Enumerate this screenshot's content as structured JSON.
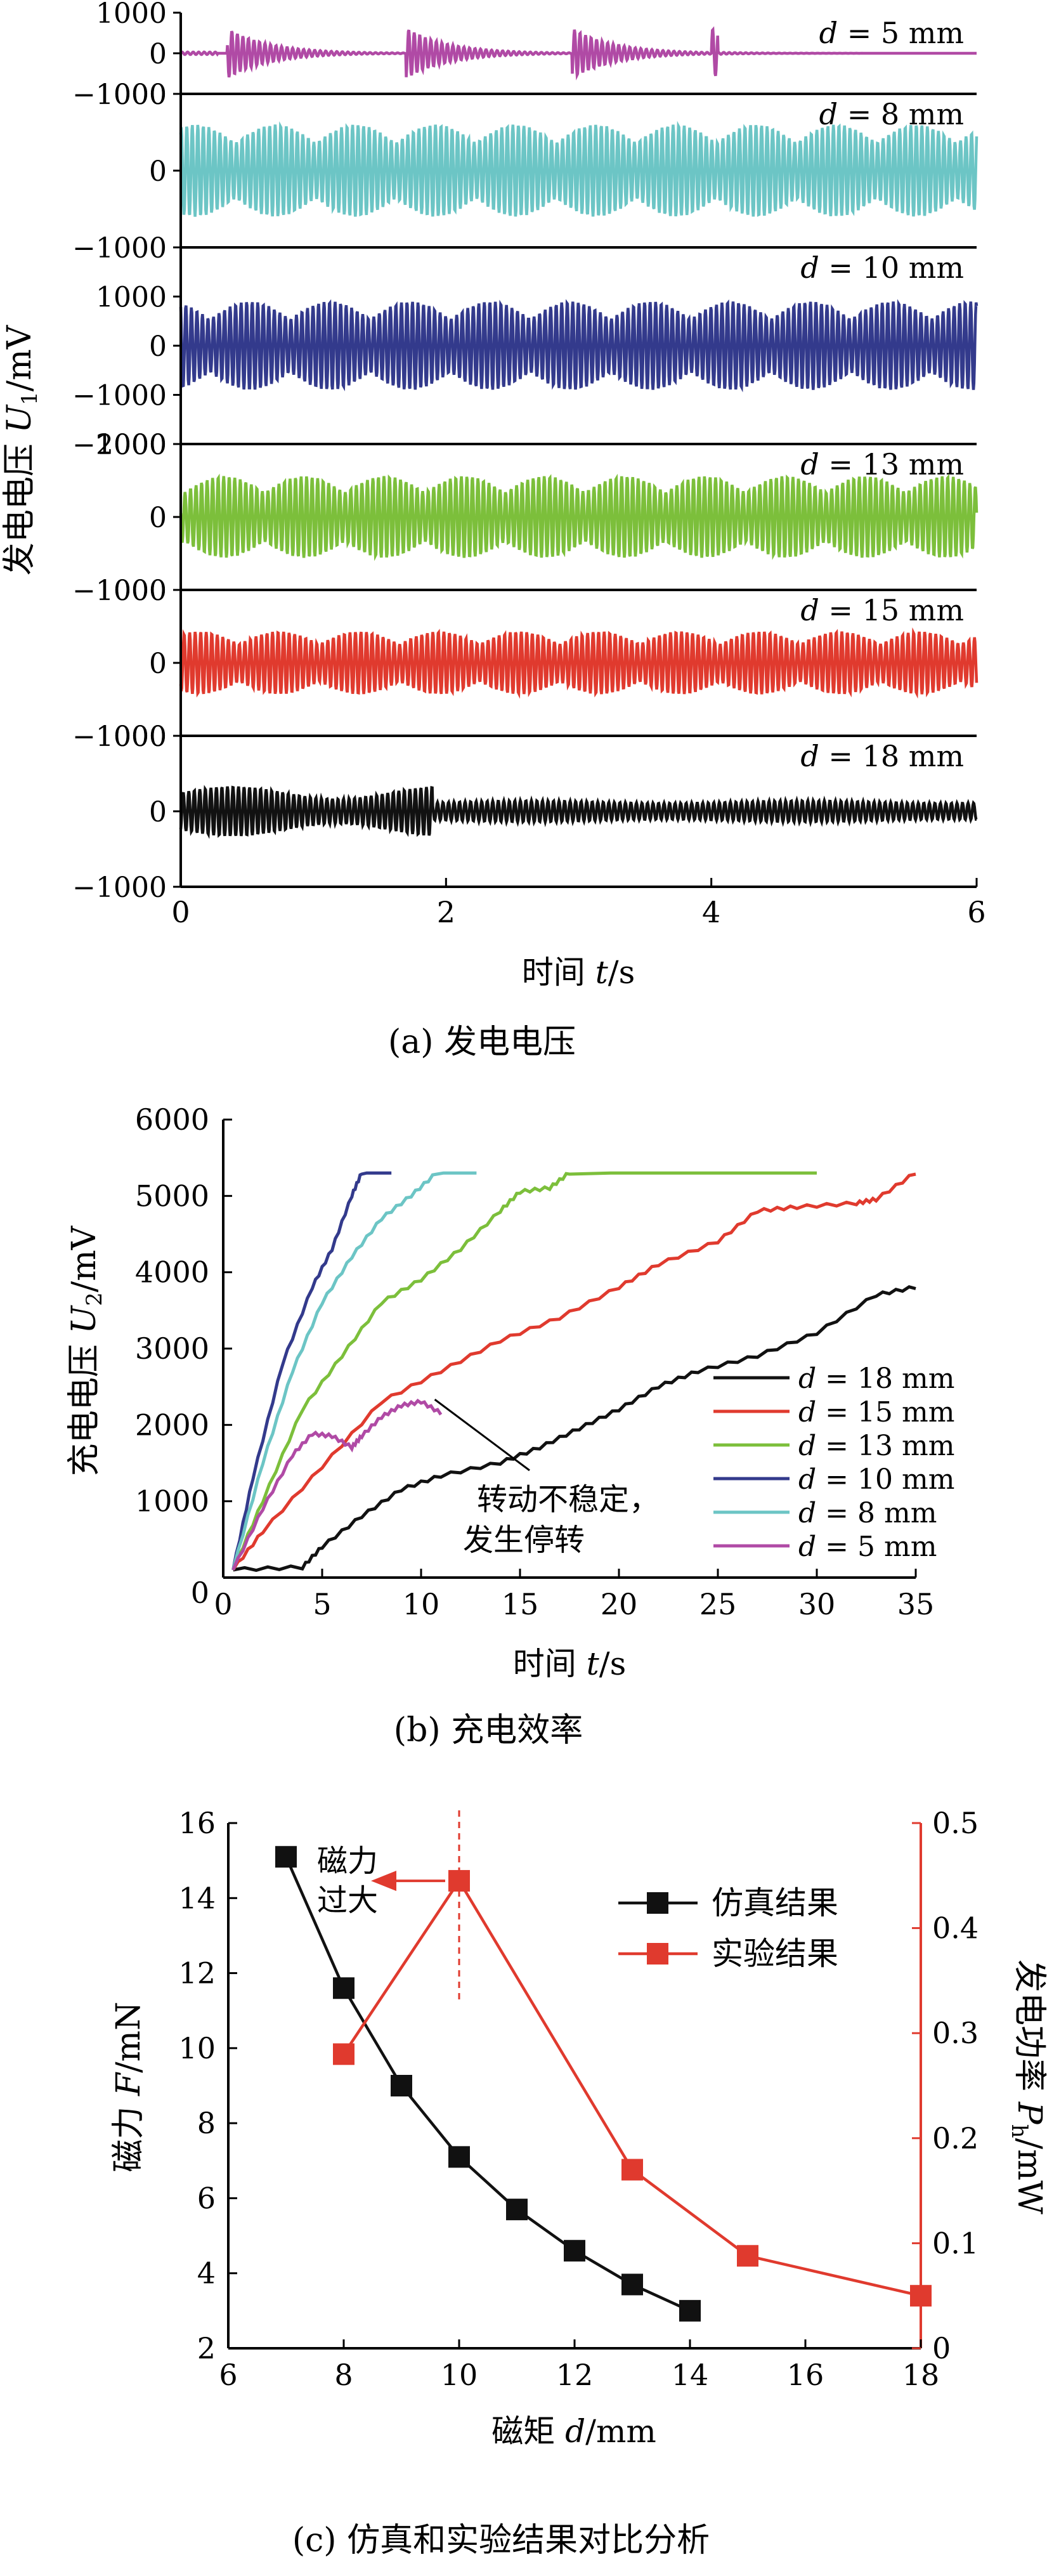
{
  "chart_data": [
    {
      "type": "line",
      "panel": "a",
      "ylabel_prefix": "发电电压 ",
      "ylabel_var": "U",
      "ylabel_sub": "1",
      "ylabel_unit": "/mV",
      "xlabel_prefix": "时间 ",
      "xlabel_var": "t",
      "xlabel_unit": "/s",
      "caption": "(a) 发电电压",
      "xlim": [
        0,
        6
      ],
      "xticks": [
        "0",
        "2",
        "4",
        "6"
      ],
      "xtick_values": [
        0,
        2,
        4,
        6
      ],
      "strips": [
        {
          "label_var": "d",
          "label_text": " = 5 mm",
          "color": "#b04aa5",
          "ylim": [
            -1000,
            1000
          ],
          "yticks": [
            "1000",
            "0",
            "−1000"
          ],
          "ytick_values": [
            1000,
            0,
            -1000
          ],
          "amplitude": 620,
          "pattern": "burst",
          "bursts": [
            0.35,
            1.7,
            2.95,
            4.0
          ]
        },
        {
          "label_var": "d",
          "label_text": " = 8 mm",
          "color": "#6cc5c5",
          "ylim": [
            -1000,
            1000
          ],
          "yticks": [
            "1000",
            "0",
            "−1000"
          ],
          "ytick_values": [
            1000,
            0,
            -1000
          ],
          "amplitude": 600,
          "pattern": "cont"
        },
        {
          "label_var": "d",
          "label_text": " = 10 mm",
          "color": "#333a8c",
          "ylim": [
            -2000,
            2000
          ],
          "yticks": [
            "1000",
            "0",
            "−1000",
            "−2000"
          ],
          "ytick_values": [
            1000,
            0,
            -1000,
            -2000
          ],
          "amplitude": 900,
          "pattern": "cont"
        },
        {
          "label_var": "d",
          "label_text": " = 13 mm",
          "color": "#7cbf3b",
          "ylim": [
            -1000,
            1000
          ],
          "yticks": [
            "1000",
            "0",
            "−1000"
          ],
          "ytick_values": [
            1000,
            0,
            -1000
          ],
          "amplitude": 560,
          "pattern": "cont"
        },
        {
          "label_var": "d",
          "label_text": " = 15 mm",
          "color": "#e03a2e",
          "ylim": [
            -1000,
            1000
          ],
          "yticks": [
            "1000",
            "0",
            "−1000"
          ],
          "ytick_values": [
            1000,
            0,
            -1000
          ],
          "amplitude": 430,
          "pattern": "cont"
        },
        {
          "label_var": "d",
          "label_text": " = 18 mm",
          "color": "#111111",
          "ylim": [
            -1000,
            1000
          ],
          "yticks": [
            "1000",
            "0",
            "−1000"
          ],
          "ytick_values": [
            1000,
            0,
            -1000
          ],
          "amplitude": 330,
          "pattern": "decay"
        }
      ]
    },
    {
      "type": "line",
      "panel": "b",
      "ylabel_prefix": "充电电压 ",
      "ylabel_var": "U",
      "ylabel_sub": "2",
      "ylabel_unit": "/mV",
      "xlabel_prefix": "时间 ",
      "xlabel_var": "t",
      "xlabel_unit": "/s",
      "caption": "(b) 充电效率",
      "xlim": [
        0,
        35
      ],
      "ylim": [
        0,
        6000
      ],
      "xticks": [
        "0",
        "5",
        "10",
        "15",
        "20",
        "25",
        "30",
        "35"
      ],
      "xtick_values": [
        0,
        5,
        10,
        15,
        20,
        25,
        30,
        35
      ],
      "yticks": [
        "1000",
        "2000",
        "3000",
        "4000",
        "5000",
        "6000"
      ],
      "ytick_values": [
        1000,
        2000,
        3000,
        4000,
        5000,
        6000
      ],
      "annotation_line1": "转动不稳定，",
      "annotation_line2": "发生停转",
      "annotation_point": [
        10.5,
        2250
      ],
      "series": [
        {
          "name_var": "d",
          "name_text": " = 18 mm",
          "color": "#111111",
          "points": [
            [
              0.5,
              100
            ],
            [
              4,
              130
            ],
            [
              5,
              400
            ],
            [
              7,
              800
            ],
            [
              9,
              1150
            ],
            [
              11,
              1330
            ],
            [
              14,
              1500
            ],
            [
              16,
              1700
            ],
            [
              18,
              1950
            ],
            [
              20,
              2200
            ],
            [
              22,
              2500
            ],
            [
              24,
              2700
            ],
            [
              27,
              2900
            ],
            [
              30,
              3200
            ],
            [
              33,
              3700
            ],
            [
              35,
              3800
            ]
          ]
        },
        {
          "name_var": "d",
          "name_text": " = 15 mm",
          "color": "#e03a2e",
          "points": [
            [
              0.5,
              100
            ],
            [
              2,
              600
            ],
            [
              5,
              1450
            ],
            [
              8,
              2300
            ],
            [
              11,
              2700
            ],
            [
              14,
              3100
            ],
            [
              17,
              3400
            ],
            [
              20,
              3800
            ],
            [
              22,
              4100
            ],
            [
              25,
              4400
            ],
            [
              27,
              4800
            ],
            [
              29,
              4850
            ],
            [
              32,
              4900
            ],
            [
              33,
              4950
            ],
            [
              35,
              5300
            ]
          ]
        },
        {
          "name_var": "d",
          "name_text": " = 13 mm",
          "color": "#7cbf3b",
          "points": [
            [
              0.5,
              100
            ],
            [
              2,
              1000
            ],
            [
              4,
              2200
            ],
            [
              6,
              2900
            ],
            [
              8,
              3600
            ],
            [
              10,
              3900
            ],
            [
              12,
              4300
            ],
            [
              14,
              4800
            ],
            [
              15,
              5050
            ],
            [
              16.5,
              5100
            ],
            [
              17.5,
              5300
            ],
            [
              30,
              5300
            ]
          ]
        },
        {
          "name_var": "d",
          "name_text": " = 10 mm",
          "color": "#333a8c",
          "points": [
            [
              0.5,
              100
            ],
            [
              1.5,
              1300
            ],
            [
              3,
              2800
            ],
            [
              4.5,
              3800
            ],
            [
              5.5,
              4300
            ],
            [
              6.5,
              5000
            ],
            [
              7,
              5300
            ],
            [
              8.5,
              5300
            ]
          ]
        },
        {
          "name_var": "d",
          "name_text": " = 8 mm",
          "color": "#6cc5c5",
          "points": [
            [
              0.5,
              100
            ],
            [
              2,
              1500
            ],
            [
              3.5,
              2700
            ],
            [
              5,
              3600
            ],
            [
              6.5,
              4200
            ],
            [
              8,
              4700
            ],
            [
              9.5,
              5000
            ],
            [
              10.8,
              5300
            ],
            [
              12.8,
              5300
            ]
          ]
        },
        {
          "name_var": "d",
          "name_text": " = 5 mm",
          "color": "#b04aa5",
          "points": [
            [
              0.5,
              100
            ],
            [
              2,
              900
            ],
            [
              3.5,
              1600
            ],
            [
              4.5,
              1880
            ],
            [
              5.5,
              1850
            ],
            [
              6.5,
              1700
            ],
            [
              7,
              1850
            ],
            [
              8,
              2100
            ],
            [
              9,
              2250
            ],
            [
              10,
              2300
            ],
            [
              11,
              2150
            ]
          ]
        }
      ]
    },
    {
      "type": "line",
      "panel": "c",
      "xlabel_prefix": "磁矩 ",
      "xlabel_var": "d",
      "xlabel_unit": "/mm",
      "ylabel_left_prefix": "磁力 ",
      "ylabel_left_var": "F",
      "ylabel_left_unit": "/mN",
      "ylabel_right_prefix": "发电功率 ",
      "ylabel_right_var": "P",
      "ylabel_right_sub": "h",
      "ylabel_right_unit": "/mW",
      "caption": "(c) 仿真和实验结果对比分析",
      "xlim": [
        6,
        18
      ],
      "ylim_left": [
        2,
        16
      ],
      "ylim_right": [
        0,
        0.5
      ],
      "xticks": [
        "6",
        "8",
        "10",
        "12",
        "14",
        "16",
        "18"
      ],
      "xtick_values": [
        6,
        8,
        10,
        12,
        14,
        16,
        18
      ],
      "yticks_left": [
        "2",
        "4",
        "6",
        "8",
        "10",
        "12",
        "14",
        "16"
      ],
      "ytick_left_values": [
        2,
        4,
        6,
        8,
        10,
        12,
        14,
        16
      ],
      "yticks_right": [
        "0",
        "0.1",
        "0.2",
        "0.3",
        "0.4",
        "0.5"
      ],
      "ytick_right_values": [
        0,
        0.1,
        0.2,
        0.3,
        0.4,
        0.5
      ],
      "annotation_line1": "磁力",
      "annotation_line2": "过大",
      "series": [
        {
          "name": "仿真结果",
          "color": "#111111",
          "axis": "left",
          "x": [
            7,
            8,
            9,
            10,
            11,
            12,
            13,
            14
          ],
          "y": [
            15.1,
            11.6,
            9.0,
            7.1,
            5.7,
            4.6,
            3.7,
            3.0
          ]
        },
        {
          "name": "实验结果",
          "color": "#e03a2e",
          "axis": "right",
          "x": [
            8,
            10,
            13,
            15,
            18
          ],
          "y": [
            0.28,
            0.445,
            0.17,
            0.088,
            0.05
          ]
        }
      ]
    }
  ]
}
